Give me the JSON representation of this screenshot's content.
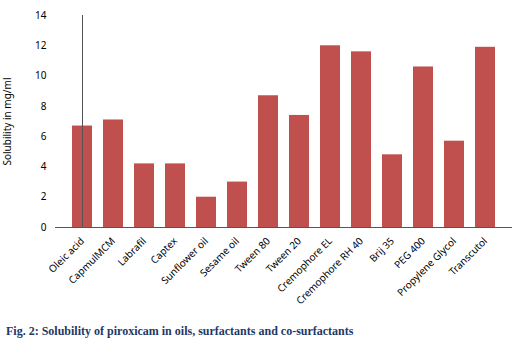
{
  "chart_data": {
    "type": "bar",
    "categories": [
      "Oleic acid",
      "CapmulMCM",
      "Labrafil",
      "Captex",
      "Sunflower oil",
      "Sesame oil",
      "Tween 80",
      "Tween 20",
      "Cremophore EL",
      "Cremophore RH 40",
      "Brij 35",
      "PEG 400",
      "Propylene Glycol",
      "Transcutol"
    ],
    "values": [
      6.7,
      7.1,
      4.2,
      4.2,
      2.0,
      3.0,
      8.7,
      7.4,
      12.0,
      11.6,
      4.8,
      10.6,
      5.7,
      11.9
    ],
    "color": "#c0504d",
    "ylabel": "Solubility in mg/ml",
    "caption": "Fig. 2:  Solubility of piroxicam in oils, surfactants and co-surfactants",
    "ylim": [
      0,
      14
    ],
    "yticks": [
      0,
      2,
      4,
      6,
      8,
      10,
      12,
      14
    ],
    "grid": false
  }
}
